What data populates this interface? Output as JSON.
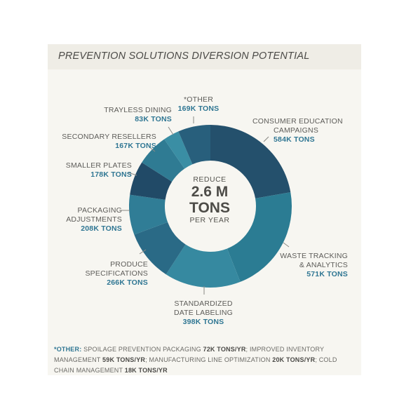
{
  "title": "PREVENTION SOLUTIONS DIVERSION POTENTIAL",
  "center": {
    "top": "REDUCE",
    "line1": "2.6 M",
    "line2": "TONS",
    "bottom": "PER YEAR"
  },
  "chart_data": {
    "type": "pie",
    "title": "PREVENTION SOLUTIONS DIVERSION POTENTIAL",
    "unit": "K TONS",
    "slices": [
      {
        "name": "CONSUMER EDUCATION CAMPAIGNS",
        "value": 584,
        "label": "584K TONS",
        "color": "#24506c"
      },
      {
        "name": "WASTE TRACKING & ANALYTICS",
        "value": 571,
        "label": "571K TONS",
        "color": "#2b7c93"
      },
      {
        "name": "STANDARDIZED DATE LABELING",
        "value": 398,
        "label": "398K TONS",
        "color": "#3689a0"
      },
      {
        "name": "PRODUCE SPECIFICATIONS",
        "value": 266,
        "label": "266K TONS",
        "color": "#2a6a86"
      },
      {
        "name": "PACKAGING ADJUSTMENTS",
        "value": 208,
        "label": "208K TONS",
        "color": "#307d96"
      },
      {
        "name": "SMALLER PLATES",
        "value": 178,
        "label": "178K TONS",
        "color": "#214a67"
      },
      {
        "name": "SECONDARY RESELLERS",
        "value": 167,
        "label": "167K TONS",
        "color": "#2f7b93"
      },
      {
        "name": "TRAYLESS DINING",
        "value": 83,
        "label": "83K TONS",
        "color": "#3a8ea4"
      },
      {
        "name": "*OTHER",
        "value": 169,
        "label": "169K TONS",
        "color": "#285f7c"
      }
    ]
  },
  "labels": {
    "consumer": {
      "line1": "CONSUMER EDUCATION",
      "line2": "CAMPAIGNS",
      "value": "584K TONS"
    },
    "waste": {
      "line1": "WASTE TRACKING",
      "line2": "& ANALYTICS",
      "value": "571K TONS"
    },
    "date": {
      "line1": "STANDARDIZED",
      "line2": "DATE LABELING",
      "value": "398K TONS"
    },
    "produce": {
      "line1": "PRODUCE",
      "line2": "SPECIFICATIONS",
      "value": "266K TONS"
    },
    "packaging": {
      "line1": "PACKAGING",
      "line2": "ADJUSTMENTS",
      "value": "208K TONS"
    },
    "plates": {
      "line1": "SMALLER PLATES",
      "value": "178K TONS"
    },
    "resellers": {
      "line1": "SECONDARY RESELLERS",
      "value": "167K TONS"
    },
    "trayless": {
      "line1": "TRAYLESS DINING",
      "value": "83K TONS"
    },
    "other": {
      "line1": "*OTHER",
      "value": "169K TONS"
    }
  },
  "footnote": {
    "head": "*OTHER:",
    "t1": " SPOILAGE PREVENTION PACKAGING ",
    "v1": "72K TONS/YR",
    "t2": "; IMPROVED INVENTORY MANAGEMENT ",
    "v2": "59K TONS/YR",
    "t3": "; MANUFACTURING LINE OPTIMIZATION ",
    "v3": "20K TONS/YR",
    "t4": ";  COLD CHAIN MANAGEMENT ",
    "v4": "18K TONS/YR"
  }
}
